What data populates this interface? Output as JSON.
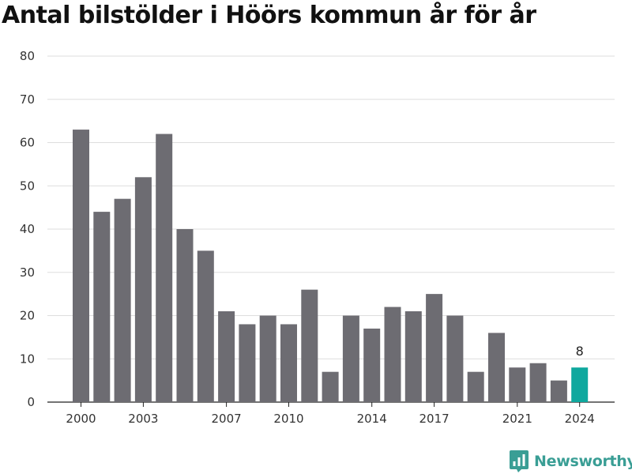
{
  "chart_data": {
    "type": "bar",
    "title": "Antal bilstölder i Höörs kommun år för år",
    "xlabel": "",
    "ylabel": "",
    "categories": [
      "2000",
      "2001",
      "2002",
      "2003",
      "2004",
      "2005",
      "2006",
      "2007",
      "2008",
      "2009",
      "2010",
      "2011",
      "2012",
      "2013",
      "2014",
      "2015",
      "2016",
      "2017",
      "2018",
      "2019",
      "2020",
      "2021",
      "2022",
      "2023",
      "2024"
    ],
    "values": [
      63,
      44,
      47,
      52,
      62,
      40,
      35,
      21,
      18,
      20,
      18,
      26,
      7,
      20,
      17,
      22,
      21,
      25,
      20,
      7,
      16,
      8,
      9,
      5,
      8
    ],
    "x_tick_labels": [
      "2000",
      "2003",
      "2007",
      "2010",
      "2014",
      "2017",
      "2021",
      "2024"
    ],
    "y_ticks": [
      0,
      10,
      20,
      30,
      40,
      50,
      60,
      70,
      80
    ],
    "ylim": [
      0,
      80
    ],
    "grid": true,
    "bar_color": "#6d6c72",
    "highlight_color": "#0fa89e",
    "highlight_category": "2024",
    "highlight_label": "8"
  },
  "brand": {
    "name": "Newsworthy",
    "icon": "newsworthy-logo-icon",
    "color": "#3a9e95"
  }
}
